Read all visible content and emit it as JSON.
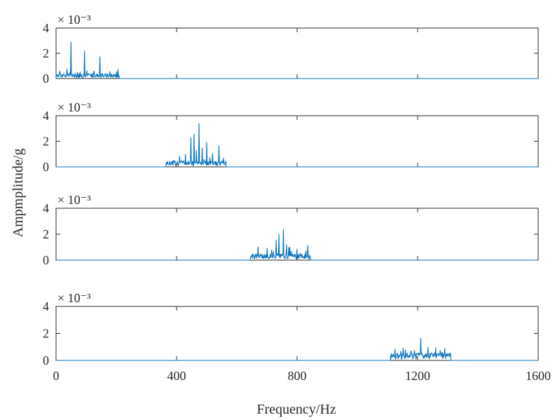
{
  "figure": {
    "ylabel": "Ampmplitude/g",
    "xlabel": "Frequency/Hz",
    "line_color": "#0072BD"
  },
  "chart_data": [
    {
      "type": "line",
      "x_range": [
        0,
        1600
      ],
      "ylim": [
        0,
        4
      ],
      "y_ticks": [
        "0",
        "2",
        "4"
      ],
      "x_ticks": [],
      "exponent_label": "× 10⁻³",
      "band": [
        0,
        210
      ],
      "baseline": 0.25,
      "peaks": [
        [
          50,
          2.9
        ],
        [
          95,
          2.2
        ],
        [
          145,
          1.75
        ],
        [
          205,
          0.75
        ],
        [
          12,
          0.6
        ],
        [
          70,
          0.5
        ],
        [
          120,
          0.45
        ],
        [
          170,
          0.4
        ]
      ]
    },
    {
      "type": "line",
      "x_range": [
        0,
        1600
      ],
      "ylim": [
        0,
        4
      ],
      "y_ticks": [
        "0",
        "2",
        "4"
      ],
      "x_ticks": [],
      "exponent_label": "× 10⁻³",
      "band": [
        365,
        565
      ],
      "baseline": 0.3,
      "peaks": [
        [
          475,
          3.4
        ],
        [
          458,
          2.6
        ],
        [
          448,
          2.3
        ],
        [
          500,
          1.95
        ],
        [
          540,
          1.65
        ],
        [
          410,
          0.85
        ],
        [
          430,
          1.0
        ],
        [
          520,
          1.05
        ],
        [
          485,
          1.5
        ],
        [
          465,
          1.3
        ],
        [
          555,
          0.7
        ],
        [
          390,
          0.5
        ]
      ]
    },
    {
      "type": "line",
      "x_range": [
        0,
        1600
      ],
      "ylim": [
        0,
        4
      ],
      "y_ticks": [
        "0",
        "2",
        "4"
      ],
      "x_ticks": [],
      "exponent_label": "× 10⁻³",
      "band": [
        645,
        845
      ],
      "baseline": 0.3,
      "peaks": [
        [
          755,
          2.4
        ],
        [
          740,
          2.0
        ],
        [
          730,
          1.55
        ],
        [
          765,
          1.2
        ],
        [
          835,
          1.15
        ],
        [
          670,
          1.05
        ],
        [
          700,
          0.95
        ],
        [
          800,
          0.85
        ],
        [
          715,
          0.8
        ],
        [
          780,
          0.7
        ]
      ]
    },
    {
      "type": "line",
      "x_range": [
        0,
        1600
      ],
      "ylim": [
        0,
        4
      ],
      "y_ticks": [
        "0",
        "2",
        "4"
      ],
      "x_ticks": [
        "0",
        "400",
        "800",
        "1200",
        "1600"
      ],
      "exponent_label": "× 10⁻³",
      "band": [
        1110,
        1310
      ],
      "baseline": 0.35,
      "peaks": [
        [
          1210,
          1.65
        ],
        [
          1125,
          0.85
        ],
        [
          1160,
          0.8
        ],
        [
          1235,
          1.0
        ],
        [
          1260,
          0.95
        ],
        [
          1290,
          0.9
        ],
        [
          1190,
          0.75
        ],
        [
          1145,
          0.7
        ],
        [
          1275,
          0.75
        ]
      ]
    }
  ]
}
